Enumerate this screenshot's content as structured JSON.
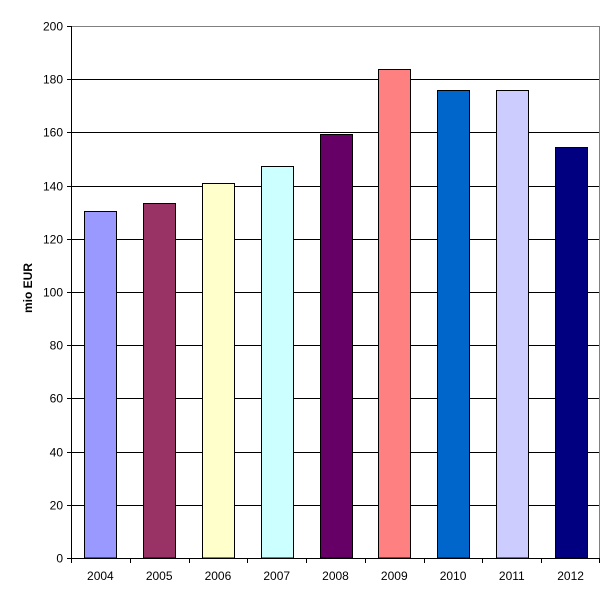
{
  "chart_data": {
    "type": "bar",
    "categories": [
      "2004",
      "2005",
      "2006",
      "2007",
      "2008",
      "2009",
      "2010",
      "2011",
      "2012"
    ],
    "values": [
      130.5,
      133.5,
      141,
      147.5,
      159.5,
      184,
      176,
      176,
      154.5
    ],
    "bar_colors": [
      "#9999FF",
      "#993366",
      "#FFFFCC",
      "#CCFFFF",
      "#660066",
      "#FF8080",
      "#0066CC",
      "#CCCCFF",
      "#000080"
    ],
    "title": "",
    "xlabel": "",
    "ylabel": "mio EUR",
    "ylim": [
      0,
      200
    ],
    "yticks": [
      0,
      20,
      40,
      60,
      80,
      100,
      120,
      140,
      160,
      180,
      200
    ],
    "grid": true,
    "legend": "none"
  }
}
